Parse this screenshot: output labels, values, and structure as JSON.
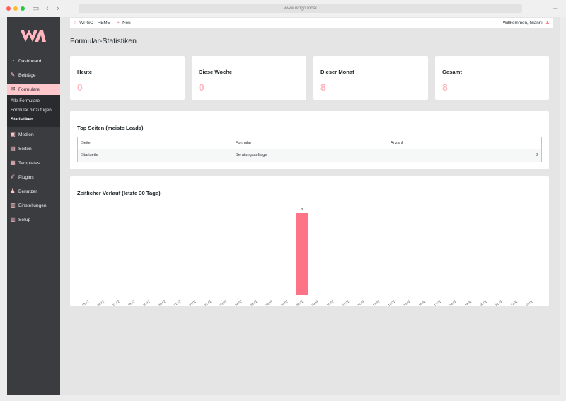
{
  "browser": {
    "url": "www.wpgo.local"
  },
  "sidebar": {
    "items": [
      {
        "label": "Dashboard",
        "icon": "dashboard-icon",
        "glyph": "◔"
      },
      {
        "label": "Beiträge",
        "icon": "pin-icon",
        "glyph": "✎"
      },
      {
        "label": "Formulare",
        "icon": "envelope-icon",
        "glyph": "✉",
        "active": true
      },
      {
        "label": "Medien",
        "icon": "media-icon",
        "glyph": "▣"
      },
      {
        "label": "Seiten",
        "icon": "pages-icon",
        "glyph": "▤"
      },
      {
        "label": "Templates",
        "icon": "templates-icon",
        "glyph": "▦"
      },
      {
        "label": "Plugins",
        "icon": "plugin-icon",
        "glyph": "✐"
      },
      {
        "label": "Benutzer",
        "icon": "user-icon",
        "glyph": "♟"
      },
      {
        "label": "Einstellungen",
        "icon": "settings-icon",
        "glyph": "▥"
      },
      {
        "label": "Setup",
        "icon": "setup-icon",
        "glyph": "▥"
      }
    ],
    "submenu": [
      {
        "label": "Alle Formulare"
      },
      {
        "label": "Formular hinzufügen"
      },
      {
        "label": "Statistiken",
        "current": true
      }
    ]
  },
  "adminbar": {
    "site": "WPGO THEME",
    "new": "Neu",
    "greeting": "Willkommen, Gianni"
  },
  "page": {
    "title": "Formular-Statistiken"
  },
  "stats": [
    {
      "label": "Heute",
      "value": "0"
    },
    {
      "label": "Diese Woche",
      "value": "0"
    },
    {
      "label": "Dieser Monat",
      "value": "8"
    },
    {
      "label": "Gesamt",
      "value": "8"
    }
  ],
  "top_pages": {
    "title": "Top Seiten (meiste Leads)",
    "columns": [
      "Seite",
      "Formular",
      "Anzahl"
    ],
    "rows": [
      {
        "page": "Startseite",
        "form": "Beratungsanfrage",
        "count": "8"
      }
    ]
  },
  "timeline": {
    "title": "Zeitlicher Verlauf (letzte 30 Tage)"
  },
  "chart_data": {
    "type": "bar",
    "title": "Zeitlicher Verlauf (letzte 30 Tage)",
    "categories": [
      "25.12",
      "26.12",
      "27.12",
      "28.12",
      "29.12",
      "30.12",
      "31.12",
      "01.01",
      "02.01",
      "03.01",
      "04.01",
      "05.01",
      "06.01",
      "07.01",
      "08.01",
      "09.01",
      "10.01",
      "11.01",
      "12.01",
      "13.01",
      "14.01",
      "15.01",
      "16.01",
      "17.01",
      "18.01",
      "19.01",
      "20.01",
      "21.01",
      "22.01",
      "23.01"
    ],
    "values": [
      0,
      0,
      0,
      0,
      0,
      0,
      0,
      0,
      0,
      0,
      0,
      0,
      0,
      0,
      8,
      0,
      0,
      0,
      0,
      0,
      0,
      0,
      0,
      0,
      0,
      0,
      0,
      0,
      0,
      0
    ],
    "data_labels": [
      "",
      "",
      "",
      "",
      "",
      "",
      "",
      "",
      "",
      "",
      "",
      "",
      "",
      "",
      "8",
      "",
      "",
      "",
      "",
      "",
      "",
      "",
      "",
      "",
      "",
      "",
      "",
      "",
      "",
      ""
    ],
    "ylim": [
      0,
      8
    ],
    "bar_color": "#ff7389",
    "grid": false,
    "legend": "none"
  },
  "colors": {
    "accent": "#ffb6bf",
    "sidebar_bg": "#3b3c40",
    "active_menu": "#ffc6cc"
  }
}
